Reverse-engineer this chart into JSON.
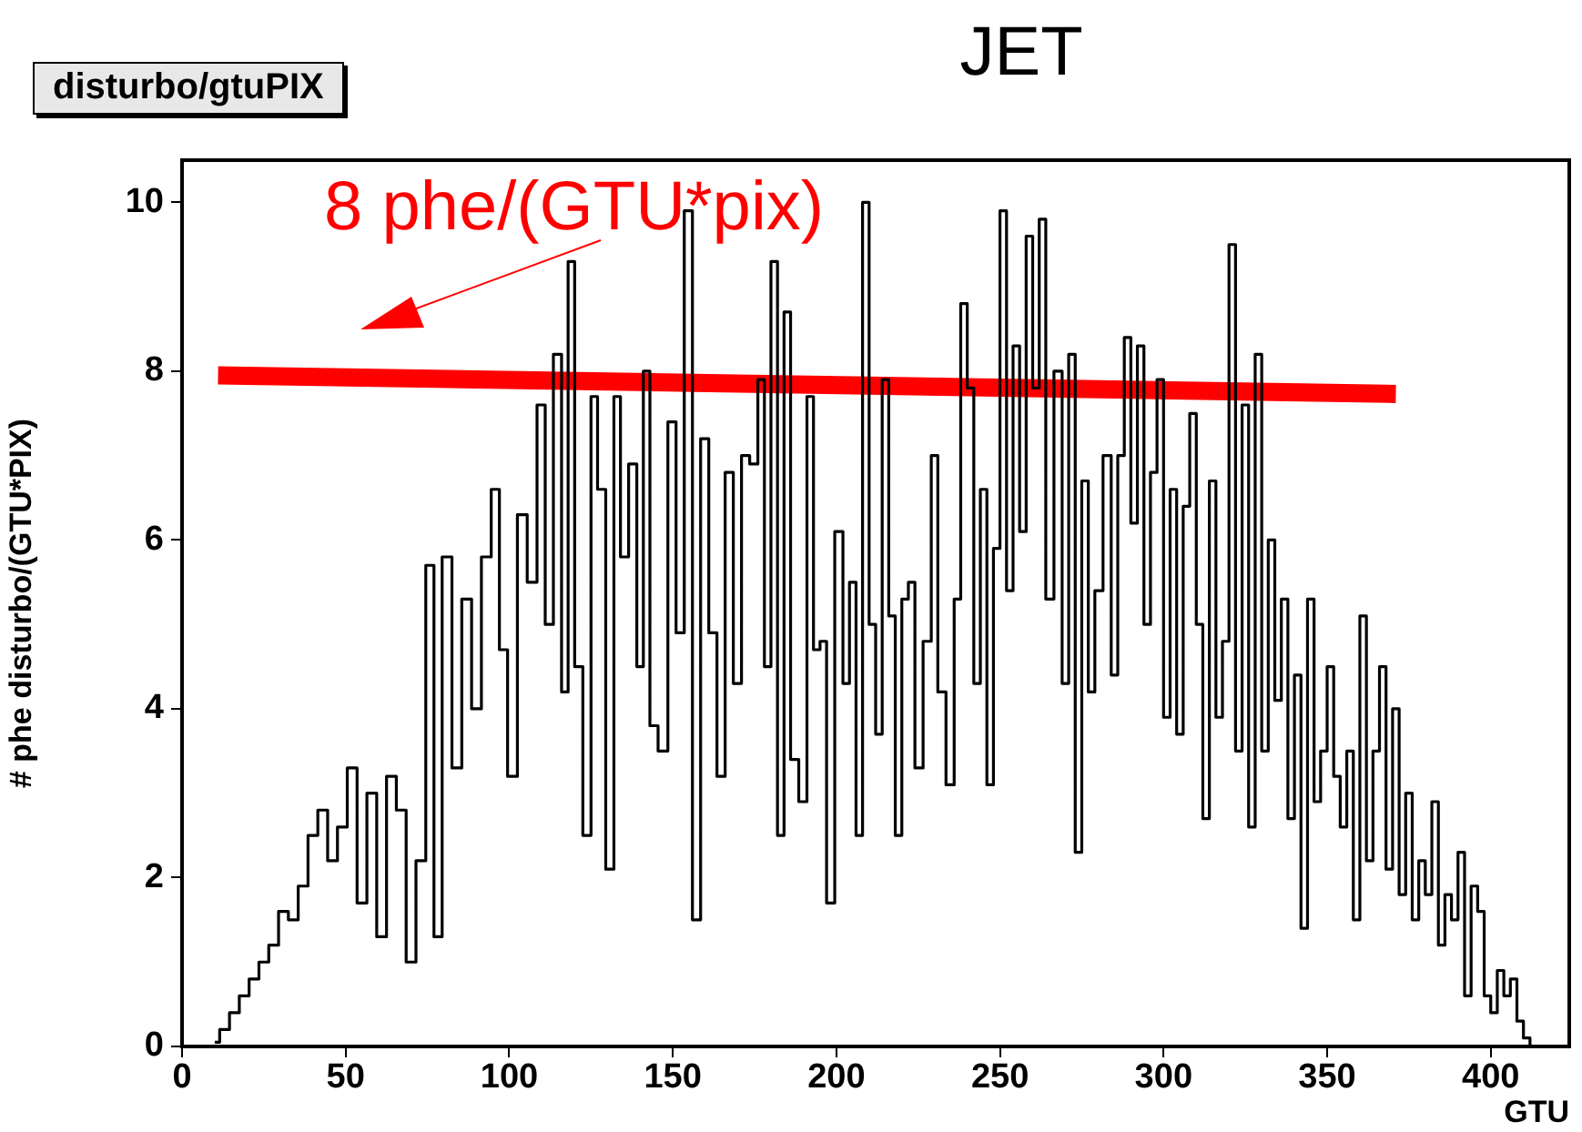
{
  "chart_data": {
    "type": "step",
    "title": "JET",
    "subtitle": "disturbo/gtuPIX",
    "xlabel": "GTU",
    "ylabel": "# phe disturbo/(GTU*PIX)",
    "annotations": [
      "8 phe/(GTU*pix)"
    ],
    "xlim": [
      0,
      424
    ],
    "xticks": [
      0,
      50,
      100,
      150,
      200,
      250,
      300,
      350,
      400
    ],
    "ylim": [
      0,
      10.5
    ],
    "yticks": [
      0,
      2,
      4,
      6,
      8,
      10
    ],
    "grid": false,
    "legend": false,
    "marker": "none",
    "series": [
      {
        "color": "#000000",
        "x": [
          10,
          13,
          16,
          19,
          22,
          25,
          28,
          31,
          34,
          37,
          40,
          43,
          46,
          49,
          52,
          55,
          58,
          61,
          64,
          67,
          70,
          73,
          76,
          78,
          81,
          84,
          87,
          90,
          93,
          96,
          98,
          101,
          104,
          107,
          110,
          112,
          115,
          117,
          119,
          121,
          124,
          126,
          128,
          131,
          133,
          135,
          138,
          140,
          142,
          144,
          147,
          150,
          152,
          155,
          157,
          160,
          162,
          165,
          167,
          170,
          172,
          175,
          177,
          179,
          181,
          183,
          185,
          187,
          190,
          192,
          194,
          196,
          198,
          201,
          203,
          205,
          207,
          209,
          211,
          213,
          215,
          217,
          219,
          221,
          223,
          225,
          228,
          230,
          232,
          235,
          237,
          239,
          241,
          243,
          245,
          247,
          249,
          251,
          253,
          255,
          257,
          259,
          261,
          263,
          265,
          268,
          270,
          272,
          274,
          276,
          278,
          280,
          283,
          285,
          287,
          289,
          291,
          293,
          295,
          297,
          299,
          301,
          303,
          305,
          307,
          309,
          311,
          313,
          315,
          317,
          319,
          321,
          323,
          325,
          327,
          329,
          331,
          333,
          335,
          337,
          339,
          341,
          343,
          345,
          347,
          349,
          351,
          353,
          355,
          357,
          359,
          361,
          363,
          365,
          367,
          369,
          371,
          373,
          375,
          377,
          379,
          381,
          383,
          385,
          387,
          389,
          391,
          393,
          395,
          397,
          399,
          401,
          403,
          405,
          407,
          409,
          411,
          413
        ],
        "values": [
          0.05,
          0.2,
          0.4,
          0.6,
          0.8,
          1.0,
          1.2,
          1.6,
          1.5,
          1.9,
          2.5,
          2.8,
          2.2,
          2.6,
          3.3,
          1.7,
          3.0,
          1.3,
          3.2,
          2.8,
          1.0,
          2.2,
          5.7,
          1.3,
          5.8,
          3.3,
          5.3,
          4.0,
          5.8,
          6.6,
          4.7,
          3.2,
          6.3,
          5.5,
          7.6,
          5.0,
          8.2,
          4.2,
          9.3,
          4.5,
          2.5,
          7.7,
          6.6,
          2.1,
          7.7,
          5.8,
          6.9,
          4.5,
          8.0,
          3.8,
          3.5,
          7.4,
          4.9,
          9.9,
          1.5,
          7.2,
          4.9,
          3.2,
          6.8,
          4.3,
          7.0,
          6.9,
          7.9,
          4.5,
          9.3,
          2.5,
          8.7,
          3.4,
          2.9,
          7.7,
          4.7,
          4.8,
          1.7,
          6.1,
          4.3,
          5.5,
          2.5,
          10.0,
          5.0,
          3.7,
          7.9,
          5.1,
          2.5,
          5.3,
          5.5,
          3.3,
          4.8,
          7.0,
          4.2,
          3.1,
          5.3,
          8.8,
          7.8,
          4.3,
          6.6,
          3.1,
          5.9,
          9.9,
          5.4,
          8.3,
          6.1,
          9.6,
          7.8,
          9.8,
          5.3,
          8.0,
          4.3,
          8.2,
          2.3,
          6.7,
          4.2,
          5.4,
          7.0,
          4.4,
          7.0,
          8.4,
          6.2,
          8.3,
          5.0,
          6.8,
          7.9,
          3.9,
          6.6,
          3.7,
          6.4,
          7.5,
          5.0,
          2.7,
          6.7,
          3.9,
          4.8,
          9.5,
          3.5,
          7.6,
          2.6,
          8.2,
          3.5,
          6.0,
          4.1,
          5.3,
          2.7,
          4.4,
          1.4,
          5.3,
          2.9,
          3.5,
          4.5,
          3.2,
          2.6,
          3.5,
          1.5,
          5.1,
          2.2,
          3.5,
          4.5,
          2.1,
          4.0,
          1.8,
          3.0,
          1.5,
          2.2,
          1.8,
          2.9,
          1.2,
          1.8,
          1.5,
          2.3,
          0.6,
          1.9,
          1.6,
          0.6,
          0.4,
          0.9,
          0.6,
          0.8,
          0.3,
          0.1,
          0.0
        ]
      },
      {
        "type": "line",
        "color": "#ff0000",
        "x": [
          11,
          371
        ],
        "values": [
          7.95,
          7.73
        ]
      }
    ]
  }
}
